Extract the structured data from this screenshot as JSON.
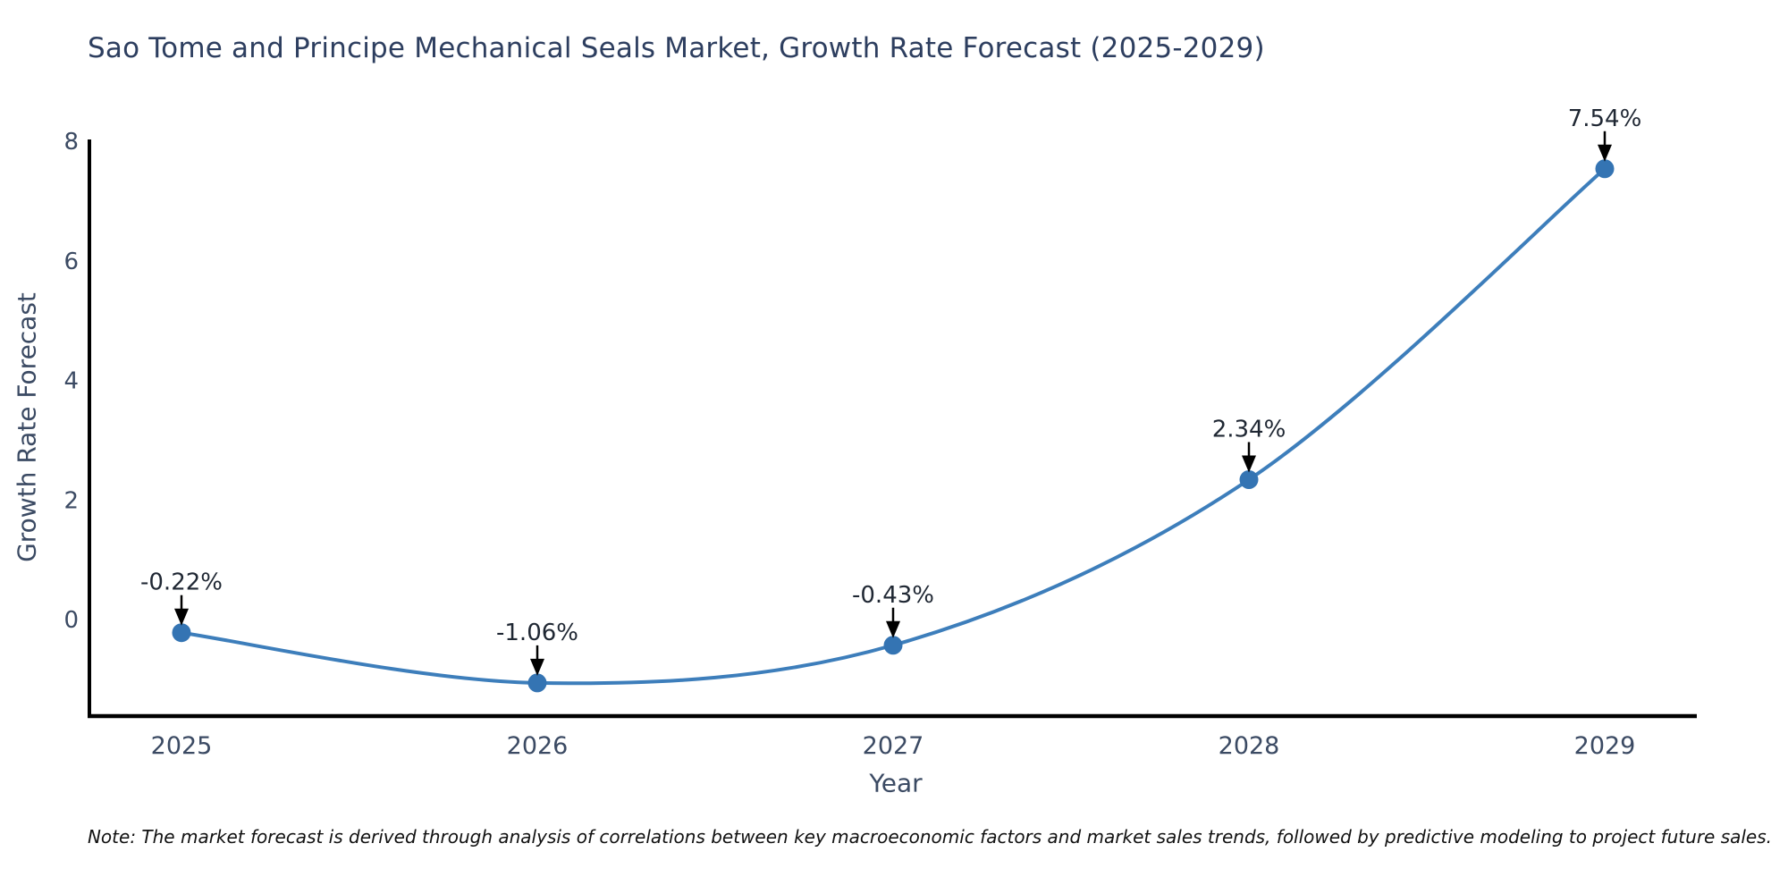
{
  "page": {
    "title": "Sao Tome and Principe Mechanical Seals Market, Growth Rate Forecast (2025-2029)",
    "note": "Note: The market forecast is derived through analysis of correlations between key macroeconomic factors and market sales trends, followed by predictive modeling to project future sales."
  },
  "chart_data": {
    "type": "line",
    "title": "Sao Tome and Principe Mechanical Seals Market, Growth Rate Forecast (2025-2029)",
    "xlabel": "Year",
    "ylabel": "Growth Rate Forecast",
    "categories": [
      "2025",
      "2026",
      "2027",
      "2028",
      "2029"
    ],
    "series": [
      {
        "name": "Growth Rate Forecast",
        "values": [
          -0.22,
          -1.06,
          -0.43,
          2.34,
          7.54
        ]
      }
    ],
    "point_labels": [
      "-0.22%",
      "-1.06%",
      "-0.43%",
      "2.34%",
      "7.54%"
    ],
    "yticks": [
      0,
      2,
      4,
      6,
      8
    ],
    "ylim": [
      -1.62,
      8
    ],
    "grid": false,
    "legend_position": "none",
    "line_shape": "spline",
    "marker": "circle",
    "annotation_note": "Note: The market forecast is derived through analysis of correlations between key macroeconomic factors and market sales trends, followed by predictive modeling to project future sales.",
    "colors": {
      "line": "#3d7ebb",
      "marker": "#3474b3",
      "spine": "#000000",
      "tick_text": "#3b4a63",
      "axis_title_text": "#3b4a63",
      "chart_title_text": "#2d3e5f",
      "annotation_text": "#1f2733",
      "annotation_arrow": "#000000",
      "note_text": "#111111",
      "background": "#ffffff"
    }
  }
}
